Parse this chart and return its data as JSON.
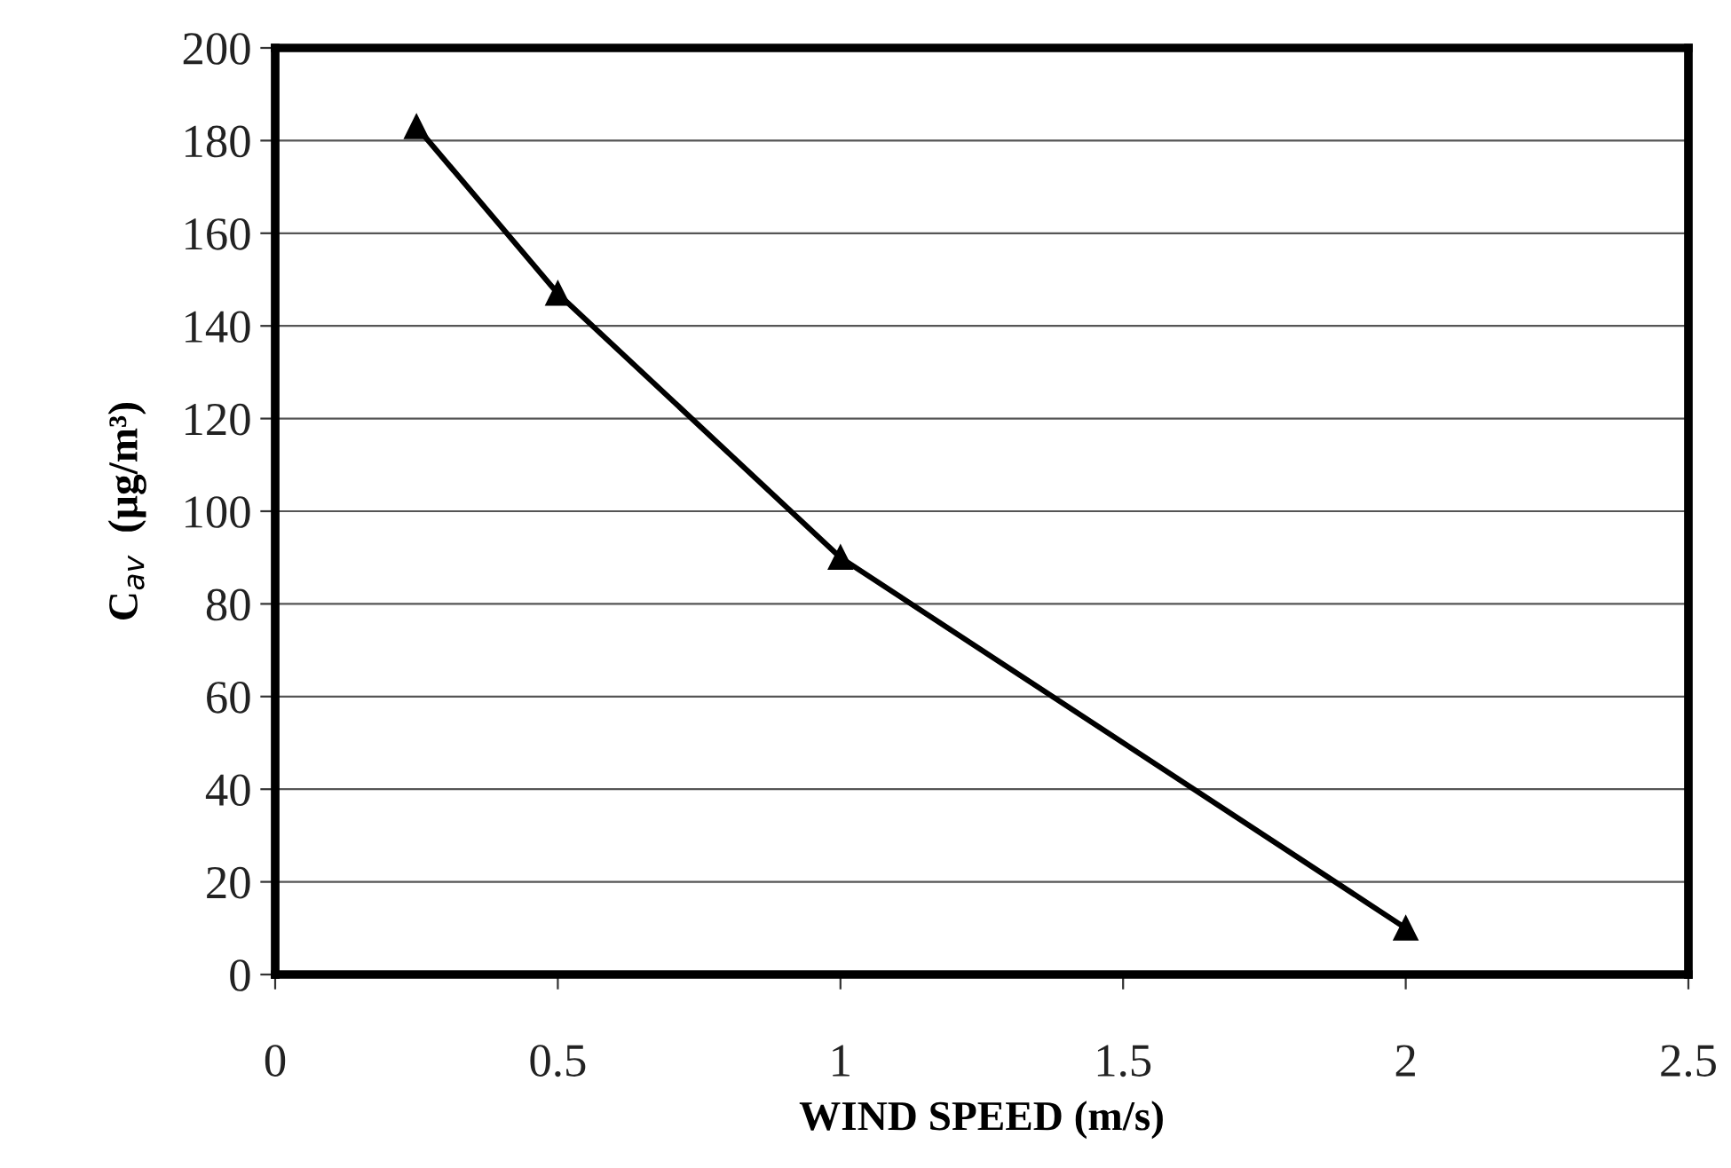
{
  "chart_data": {
    "type": "line",
    "xlabel": "WIND SPEED (m/s)",
    "ylabel": "C$_{av}$  (µg/m³)",
    "x": [
      0.25,
      0.5,
      1,
      2
    ],
    "series": [
      {
        "color": "#000000",
        "values": [
          183,
          147,
          90,
          10
        ]
      }
    ],
    "xlim": [
      0,
      2.5
    ],
    "xticks": [
      0,
      0.5,
      1,
      1.5,
      2,
      2.5
    ],
    "ylim": [
      0,
      200
    ],
    "yticks": [
      0,
      20,
      40,
      60,
      80,
      100,
      120,
      140,
      160,
      180,
      200
    ],
    "grid": "y",
    "marker": "triangle",
    "line_style": "solid"
  }
}
